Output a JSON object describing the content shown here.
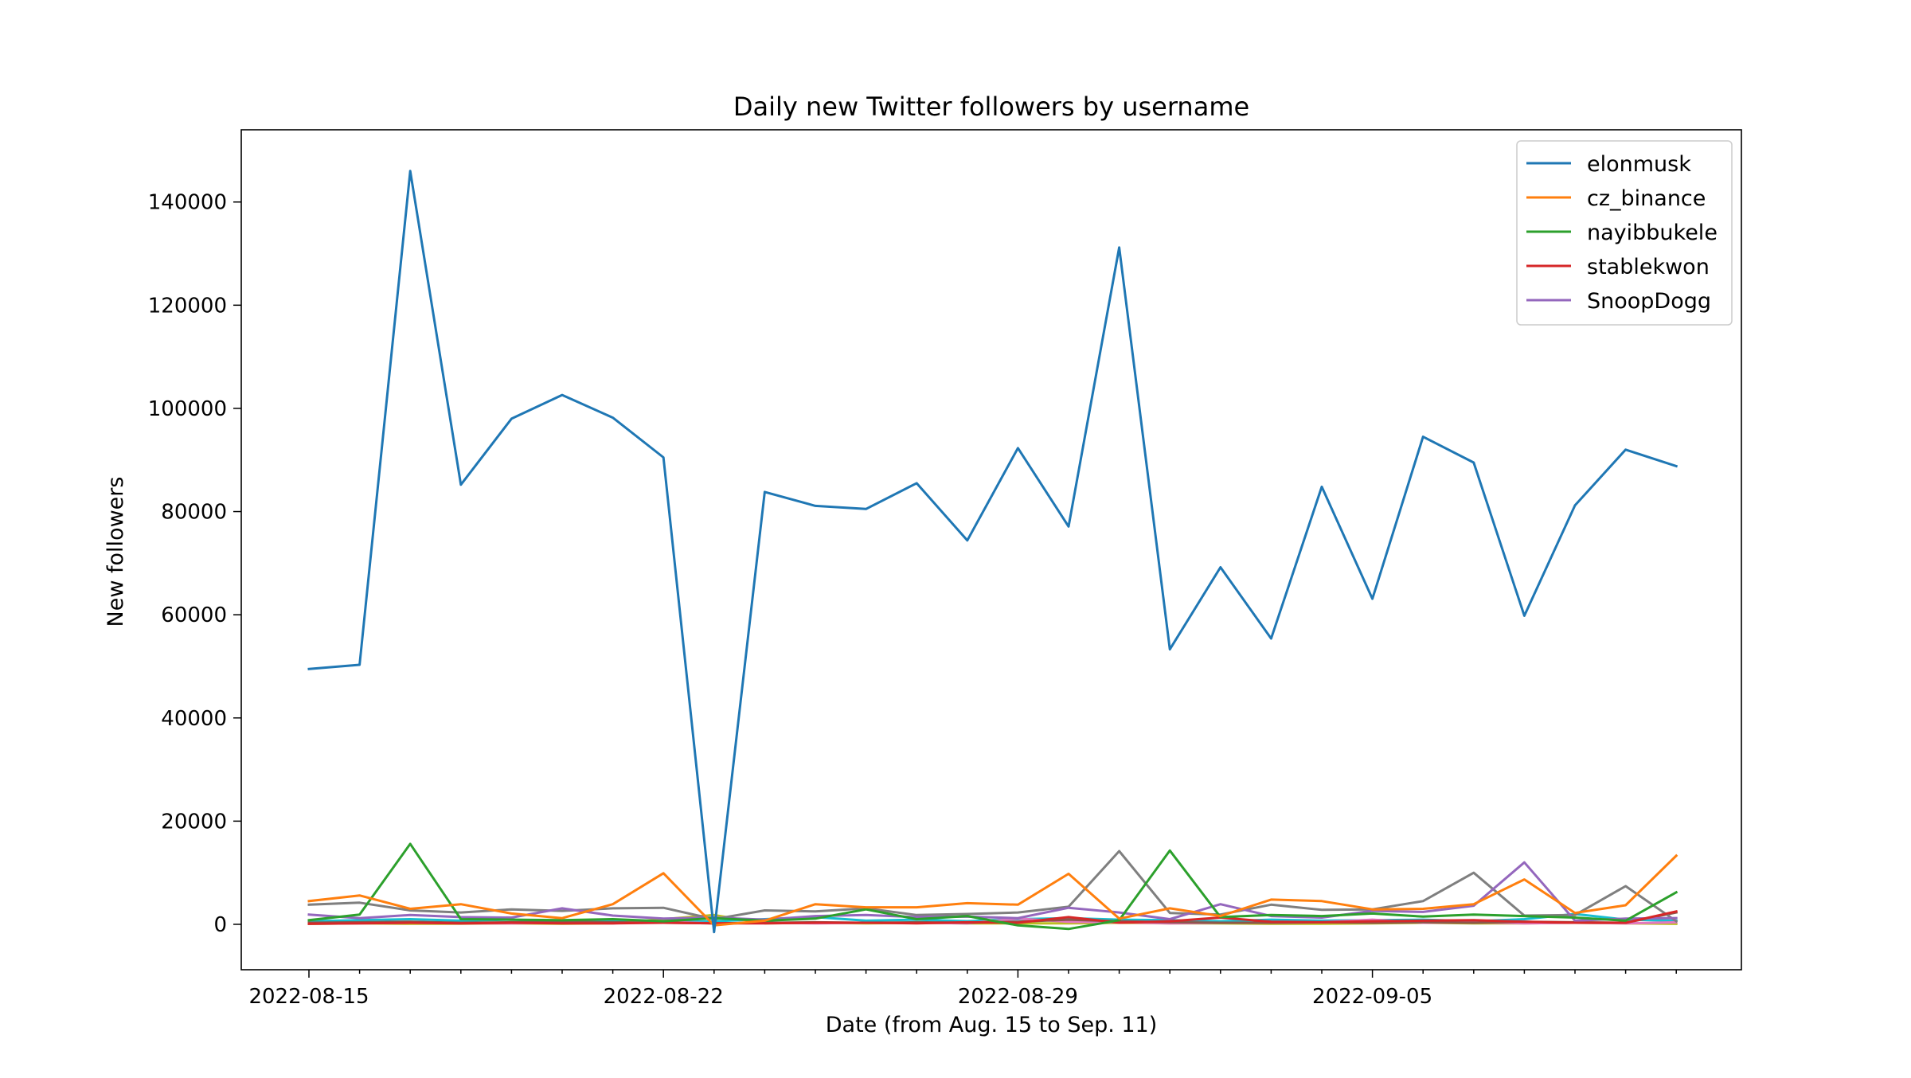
{
  "chart_data": {
    "type": "line",
    "title": "Daily new Twitter followers by username",
    "xlabel": "Date (from Aug. 15 to Sep. 11)",
    "ylabel": "New followers",
    "x": [
      "2022-08-15",
      "2022-08-16",
      "2022-08-17",
      "2022-08-18",
      "2022-08-19",
      "2022-08-20",
      "2022-08-21",
      "2022-08-22",
      "2022-08-23",
      "2022-08-24",
      "2022-08-25",
      "2022-08-26",
      "2022-08-27",
      "2022-08-28",
      "2022-08-29",
      "2022-08-30",
      "2022-08-31",
      "2022-09-01",
      "2022-09-02",
      "2022-09-03",
      "2022-09-04",
      "2022-09-05",
      "2022-09-06",
      "2022-09-07",
      "2022-09-08",
      "2022-09-09",
      "2022-09-10",
      "2022-09-11"
    ],
    "xticks": [
      "2022-08-15",
      "2022-08-22",
      "2022-08-29",
      "2022-09-05"
    ],
    "yticks": [
      0,
      20000,
      40000,
      60000,
      80000,
      100000,
      120000,
      140000
    ],
    "ylim": [
      -8800,
      154000
    ],
    "grid": false,
    "legend_position": "top-right",
    "series": [
      {
        "name": "elonmusk",
        "color": "#1f77b4",
        "in_legend": true,
        "values": [
          49500,
          50300,
          146000,
          85200,
          98000,
          102600,
          98200,
          90500,
          -1500,
          83800,
          81100,
          80500,
          85500,
          74400,
          92300,
          77100,
          131200,
          53300,
          69200,
          55400,
          84800,
          63100,
          94500,
          89500,
          59800,
          81200,
          92000,
          88800
        ]
      },
      {
        "name": "cz_binance",
        "color": "#ff7f0e",
        "in_legend": true,
        "values": [
          4500,
          5600,
          3000,
          3900,
          2100,
          1200,
          3900,
          9900,
          -200,
          700,
          3900,
          3300,
          3300,
          4100,
          3800,
          9800,
          1100,
          3100,
          1600,
          4800,
          4500,
          2900,
          3000,
          3900,
          8700,
          2200,
          3700,
          13300
        ]
      },
      {
        "name": "nayibbukele",
        "color": "#2ca02c",
        "in_legend": true,
        "values": [
          800,
          1900,
          15600,
          1000,
          900,
          800,
          1000,
          600,
          1200,
          700,
          1100,
          2900,
          1000,
          1600,
          -200,
          -900,
          800,
          14300,
          1400,
          1800,
          1600,
          2100,
          1500,
          1900,
          1600,
          1300,
          700,
          6200
        ]
      },
      {
        "name": "stablekwon",
        "color": "#d62728",
        "in_legend": true,
        "values": [
          100,
          200,
          300,
          200,
          300,
          200,
          200,
          300,
          200,
          200,
          300,
          300,
          200,
          400,
          300,
          1400,
          300,
          600,
          1300,
          500,
          400,
          600,
          700,
          800,
          500,
          300,
          300,
          2500
        ]
      },
      {
        "name": "SnoopDogg",
        "color": "#9467bd",
        "in_legend": true,
        "values": [
          1900,
          1200,
          1800,
          1400,
          1300,
          3100,
          1700,
          1100,
          1300,
          900,
          1600,
          1800,
          1400,
          1500,
          1200,
          3200,
          2300,
          1000,
          3900,
          1600,
          1300,
          2600,
          2400,
          3600,
          12000,
          700,
          1100,
          1200
        ]
      },
      {
        "name": "",
        "color": "#7f7f7f",
        "in_legend": false,
        "values": [
          3800,
          4200,
          2700,
          2300,
          2900,
          2600,
          3100,
          3200,
          1000,
          2700,
          2500,
          3100,
          1800,
          2000,
          2300,
          3400,
          14200,
          2200,
          1900,
          3800,
          2800,
          2900,
          4500,
          10000,
          1700,
          1800,
          7400,
          600
        ]
      },
      {
        "name": "",
        "color": "#8c564b",
        "in_legend": false,
        "values": [
          300,
          400,
          500,
          300,
          400,
          500,
          400,
          300,
          200,
          300,
          400,
          300,
          400,
          300,
          500,
          900,
          600,
          400,
          300,
          300,
          400,
          300,
          400,
          300,
          500,
          400,
          300,
          2300
        ]
      },
      {
        "name": "",
        "color": "#e377c2",
        "in_legend": false,
        "values": [
          200,
          200,
          300,
          200,
          200,
          300,
          200,
          500,
          200,
          300,
          200,
          300,
          300,
          200,
          1100,
          500,
          400,
          200,
          300,
          300,
          400,
          900,
          300,
          400,
          200,
          300,
          200,
          400
        ]
      },
      {
        "name": "",
        "color": "#bcbd22",
        "in_legend": false,
        "values": [
          100,
          200,
          100,
          100,
          200,
          100,
          200,
          1000,
          1800,
          200,
          300,
          200,
          300,
          200,
          200,
          200,
          300,
          200,
          200,
          100,
          100,
          200,
          300,
          200,
          200,
          300,
          200,
          100
        ]
      },
      {
        "name": "",
        "color": "#17becf",
        "in_legend": false,
        "values": [
          600,
          800,
          1000,
          700,
          900,
          600,
          700,
          400,
          600,
          1000,
          1400,
          700,
          900,
          600,
          1000,
          1200,
          900,
          800,
          600,
          900,
          700,
          800,
          900,
          600,
          1000,
          2000,
          900,
          700
        ]
      }
    ]
  }
}
